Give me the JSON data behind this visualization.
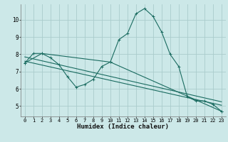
{
  "xlabel": "Humidex (Indice chaleur)",
  "bg_color": "#cce8e8",
  "grid_color": "#aacccc",
  "line_color": "#1a6b60",
  "xlim": [
    -0.5,
    23.5
  ],
  "ylim": [
    4.4,
    10.9
  ],
  "yticks": [
    5,
    6,
    7,
    8,
    9,
    10
  ],
  "xticks": [
    0,
    1,
    2,
    3,
    4,
    5,
    6,
    7,
    8,
    9,
    10,
    11,
    12,
    13,
    14,
    15,
    16,
    17,
    18,
    19,
    20,
    21,
    22,
    23
  ],
  "series1_x": [
    0,
    1,
    2,
    3,
    4,
    5,
    6,
    7,
    8,
    9,
    10,
    11,
    12,
    13,
    14,
    15,
    16,
    17,
    18,
    19,
    20,
    21,
    22,
    23
  ],
  "series1_y": [
    7.5,
    8.05,
    8.05,
    7.8,
    7.4,
    6.7,
    6.1,
    6.25,
    6.55,
    7.3,
    7.55,
    8.85,
    9.2,
    10.35,
    10.65,
    10.2,
    9.3,
    8.0,
    7.3,
    5.55,
    5.3,
    5.3,
    5.1,
    4.7
  ],
  "series2_x": [
    0,
    2,
    10,
    23
  ],
  "series2_y": [
    7.5,
    8.05,
    7.55,
    4.7
  ],
  "series3_x": [
    0,
    23
  ],
  "series3_y": [
    7.6,
    5.05
  ],
  "series4_x": [
    0,
    23
  ],
  "series4_y": [
    7.85,
    5.25
  ],
  "xlabel_fontsize": 6.5,
  "tick_fontsize": 5.0
}
